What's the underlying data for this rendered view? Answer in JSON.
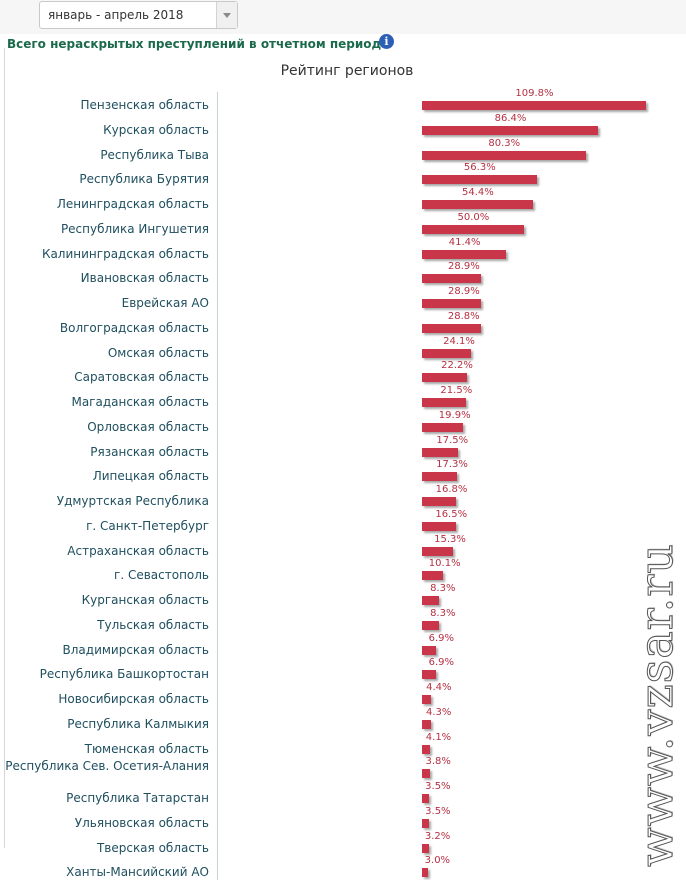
{
  "period_select": {
    "value": "январь - апрель 2018"
  },
  "heading": "Всего нераскрытых преступлений в отчетном периоде",
  "info_icon": "i",
  "watermark": "www.vzsar.ru",
  "colors": {
    "bar": "#c9364a",
    "label": "#b63043",
    "heading": "#1c6a4c"
  },
  "chart_data": {
    "type": "bar",
    "orientation": "horizontal",
    "title": "Рейтинг регионов",
    "xlabel": "",
    "ylabel": "",
    "xlim": [
      0,
      110
    ],
    "categories": [
      "Пензенская область",
      "Курская область",
      "Республика Тыва",
      "Республика Бурятия",
      "Ленинградская область",
      "Республика Ингушетия",
      "Калининградская область",
      "Ивановская область",
      "Еврейская АО",
      "Волгоградская область",
      "Омская область",
      "Саратовская область",
      "Магаданская область",
      "Орловская область",
      "Рязанская область",
      "Липецкая область",
      "Удмуртская Республика",
      "г. Санкт-Петербург",
      "Астраханская область",
      "г. Севастополь",
      "Курганская область",
      "Тульская область",
      "Владимирская область",
      "Республика Башкортостан",
      "Новосибирская область",
      "Республика Калмыкия",
      "Тюменская область",
      "Республика Сев. Осетия-Алания",
      "Республика Татарстан",
      "Ульяновская область",
      "Тверская область",
      "Ханты-Мансийский АО"
    ],
    "values": [
      109.8,
      86.4,
      80.3,
      56.3,
      54.4,
      50.0,
      41.4,
      28.9,
      28.9,
      28.8,
      24.1,
      22.2,
      21.5,
      19.9,
      17.5,
      17.3,
      16.8,
      16.5,
      15.3,
      10.1,
      8.3,
      8.3,
      6.9,
      6.9,
      4.4,
      4.3,
      4.1,
      3.8,
      3.5,
      3.5,
      3.2,
      3.0
    ],
    "value_labels": [
      "109.8%",
      "86.4%",
      "80.3%",
      "56.3%",
      "54.4%",
      "50.0%",
      "41.4%",
      "28.9%",
      "28.9%",
      "28.8%",
      "24.1%",
      "22.2%",
      "21.5%",
      "19.9%",
      "17.5%",
      "17.3%",
      "16.8%",
      "16.5%",
      "15.3%",
      "10.1%",
      "8.3%",
      "8.3%",
      "6.9%",
      "6.9%",
      "4.4%",
      "4.3%",
      "4.1%",
      "3.8%",
      "3.5%",
      "3.5%",
      "3.2%",
      "3.0%"
    ]
  }
}
